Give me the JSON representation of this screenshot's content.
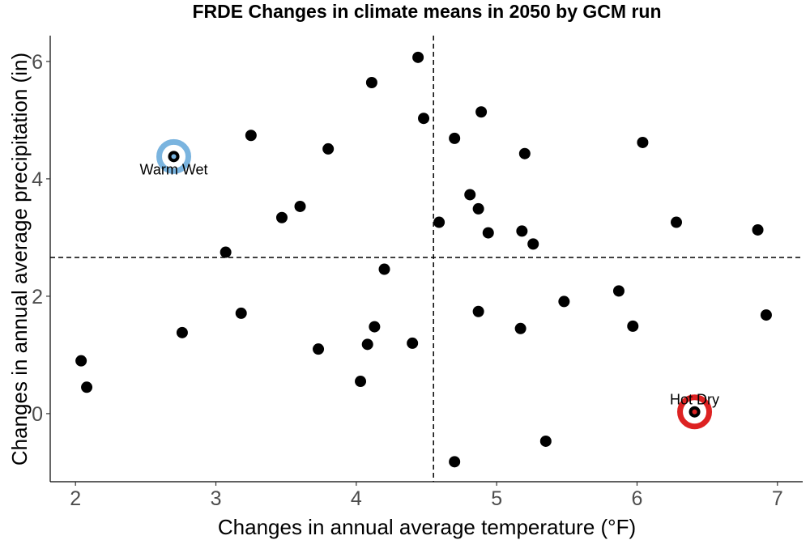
{
  "chart_data": {
    "type": "scatter",
    "title": "FRDE Changes in climate means in 2050 by GCM run",
    "xlabel": "Changes in annual average temperature (°F)",
    "ylabel": "Changes in annual average precipitation (in)",
    "xlim": [
      1.82,
      7.18
    ],
    "ylim": [
      -1.16,
      6.44
    ],
    "x_ticks": [
      2,
      3,
      4,
      5,
      6,
      7
    ],
    "y_ticks": [
      0,
      2,
      4,
      6
    ],
    "grid": false,
    "reference_lines": {
      "x": 4.55,
      "y": 2.66
    },
    "point_color": "#000000",
    "points": [
      {
        "x": 4.44,
        "y": 6.07
      },
      {
        "x": 4.11,
        "y": 5.64
      },
      {
        "x": 4.48,
        "y": 5.03
      },
      {
        "x": 4.89,
        "y": 5.14
      },
      {
        "x": 3.25,
        "y": 4.74
      },
      {
        "x": 4.7,
        "y": 4.69
      },
      {
        "x": 6.04,
        "y": 4.62
      },
      {
        "x": 3.8,
        "y": 4.51
      },
      {
        "x": 5.2,
        "y": 4.43
      },
      {
        "x": 4.81,
        "y": 3.73
      },
      {
        "x": 4.87,
        "y": 3.49
      },
      {
        "x": 3.6,
        "y": 3.53
      },
      {
        "x": 3.47,
        "y": 3.34
      },
      {
        "x": 4.59,
        "y": 3.26
      },
      {
        "x": 6.28,
        "y": 3.26
      },
      {
        "x": 5.18,
        "y": 3.11
      },
      {
        "x": 4.94,
        "y": 3.08
      },
      {
        "x": 6.86,
        "y": 3.13
      },
      {
        "x": 5.26,
        "y": 2.89
      },
      {
        "x": 3.07,
        "y": 2.75
      },
      {
        "x": 4.2,
        "y": 2.46
      },
      {
        "x": 5.87,
        "y": 2.09
      },
      {
        "x": 5.48,
        "y": 1.91
      },
      {
        "x": 3.18,
        "y": 1.71
      },
      {
        "x": 4.87,
        "y": 1.74
      },
      {
        "x": 6.92,
        "y": 1.68
      },
      {
        "x": 4.13,
        "y": 1.48
      },
      {
        "x": 5.97,
        "y": 1.49
      },
      {
        "x": 5.17,
        "y": 1.45
      },
      {
        "x": 2.76,
        "y": 1.38
      },
      {
        "x": 4.4,
        "y": 1.2
      },
      {
        "x": 4.08,
        "y": 1.18
      },
      {
        "x": 3.73,
        "y": 1.1
      },
      {
        "x": 2.04,
        "y": 0.9
      },
      {
        "x": 4.03,
        "y": 0.55
      },
      {
        "x": 2.08,
        "y": 0.45
      },
      {
        "x": 5.35,
        "y": -0.47
      },
      {
        "x": 4.7,
        "y": -0.82
      },
      {
        "x": 2.7,
        "y": 4.38
      },
      {
        "x": 6.41,
        "y": 0.03
      }
    ],
    "highlights": [
      {
        "label": "Warm Wet",
        "x": 2.7,
        "y": 4.38,
        "color": "#7ab4df"
      },
      {
        "label": "Hot Dry",
        "x": 6.41,
        "y": 0.03,
        "color": "#dd2222"
      }
    ]
  }
}
